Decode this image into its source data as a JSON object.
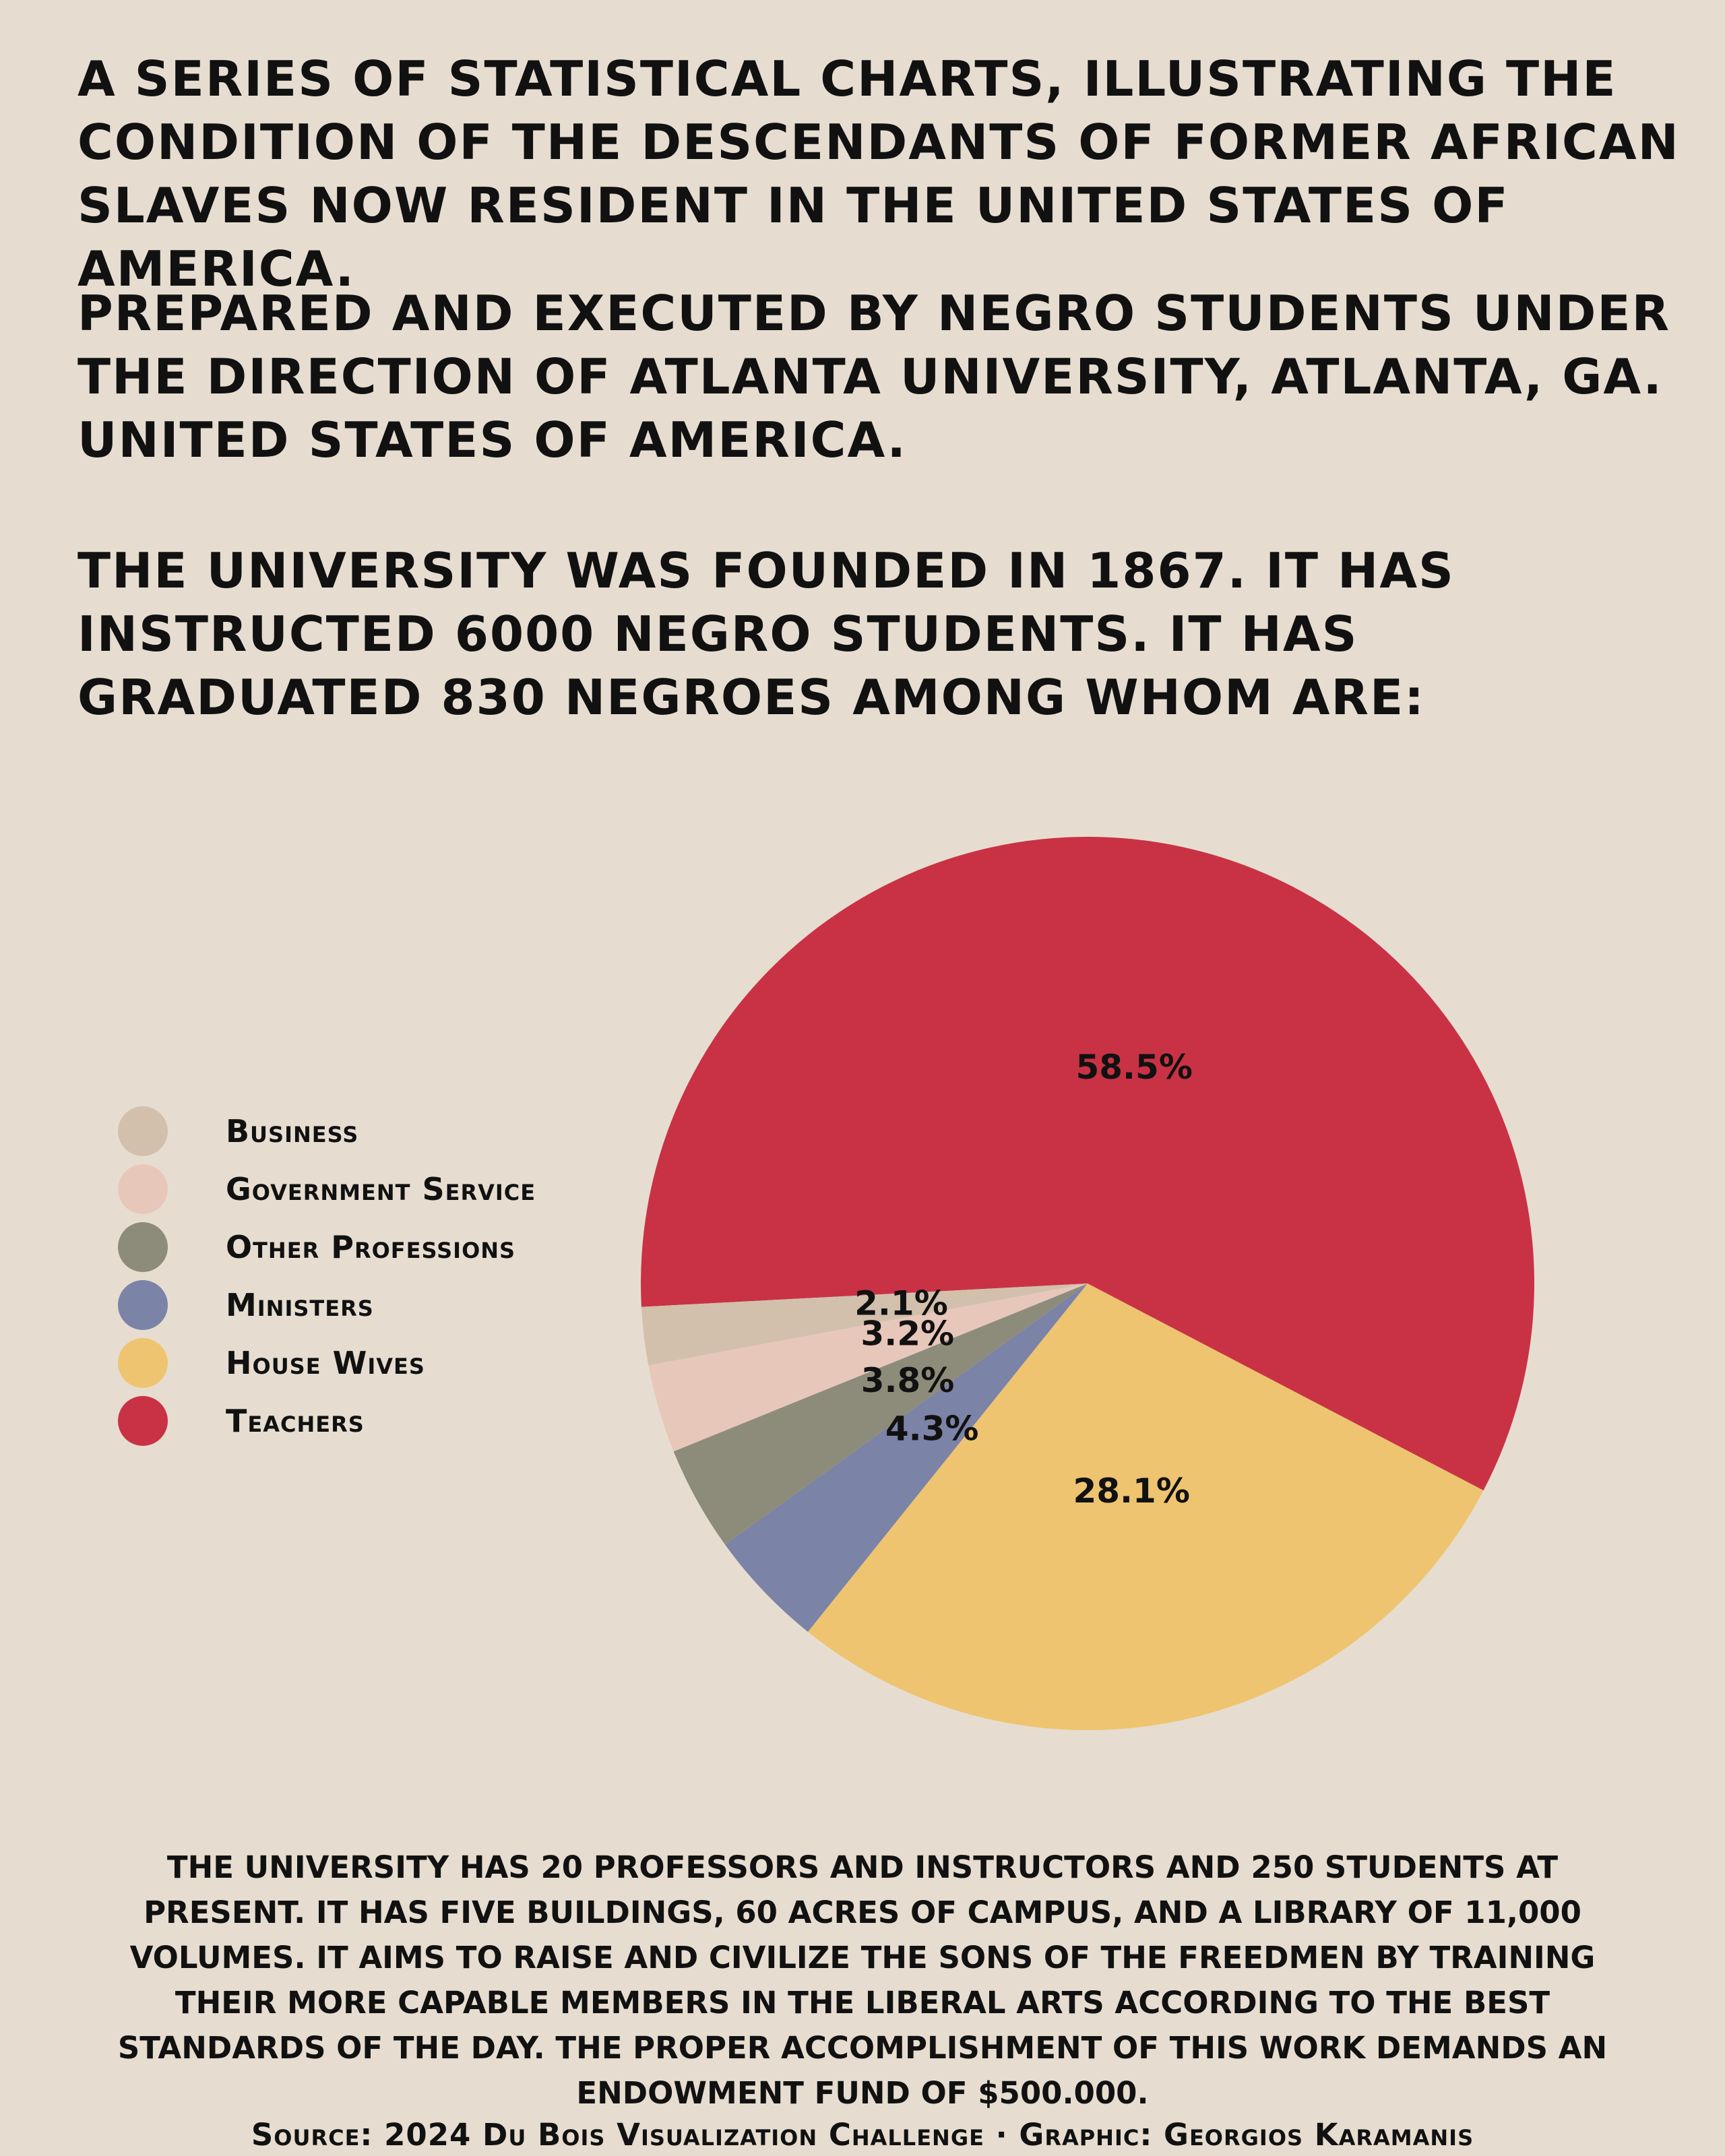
{
  "header": {
    "paragraph_1": "A series of statistical charts, illustrating the condition of the descendants of former African slaves now resident in the United States of America.",
    "paragraph_2": "Prepared and executed by Negro students under the direction of Atlanta University, Atlanta, Ga. United States of America.",
    "paragraph_3": "The University was founded in 1867. It has instructed 6000 Negro students. It has graduated 830 Negroes among whom are:"
  },
  "chart_data": {
    "type": "pie",
    "categories": [
      "Teachers",
      "House Wives",
      "Ministers",
      "Other Professions",
      "Government Service",
      "Business"
    ],
    "values": [
      58.5,
      28.1,
      4.3,
      3.8,
      3.2,
      2.1
    ],
    "labels": [
      "58.5%",
      "28.1%",
      "4.3%",
      "3.8%",
      "3.2%",
      "2.1%"
    ],
    "colors": [
      "#c93244",
      "#eec471",
      "#7b83a6",
      "#8d8c7b",
      "#e8c7bb",
      "#d2c0ac"
    ],
    "legend_placement": "left"
  },
  "legend": [
    {
      "label": "Business",
      "color": "#d2c0ac"
    },
    {
      "label": "Government Service",
      "color": "#e8c7bb"
    },
    {
      "label": "Other Professions",
      "color": "#8d8c7b"
    },
    {
      "label": "Ministers",
      "color": "#7b83a6"
    },
    {
      "label": "House Wives",
      "color": "#eec471"
    },
    {
      "label": "Teachers",
      "color": "#c93244"
    }
  ],
  "footer": {
    "text": "The University has 20 professors and instructors and 250 students at present. It has five buildings, 60 acres of campus, and a library of 11,000 volumes. It aims to raise and civilize the sons of the freedmen by training their more capable members in the liberal arts according to the best standards of the day. The proper accomplishment of this work demands an endowment fund of $500.000.",
    "source": "Source: 2024 Du Bois Visualization Challenge · Graphic: Georgios Karamanis"
  }
}
